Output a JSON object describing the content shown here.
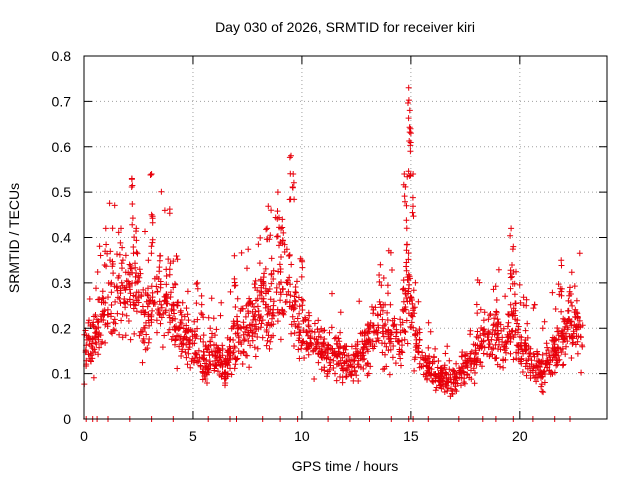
{
  "chart_data": {
    "type": "scatter",
    "title": "Day 030 of 2026, SRMTID for receiver kiri",
    "xlabel": "GPS time / hours",
    "ylabel": "SRMTID / TECUs",
    "xlim": [
      0,
      24
    ],
    "ylim": [
      0,
      0.8
    ],
    "x_ticks": [
      0,
      5,
      10,
      15,
      20
    ],
    "x_tick_labels": [
      "0",
      "5",
      "10",
      "15",
      "20"
    ],
    "y_ticks": [
      0,
      0.1,
      0.2,
      0.3,
      0.4,
      0.5,
      0.6,
      0.7,
      0.8
    ],
    "y_tick_labels": [
      "0",
      "0.1",
      "0.2",
      "0.3",
      "0.4",
      "0.5",
      "0.6",
      "0.7",
      "0.8"
    ],
    "grid": true,
    "marker": "+",
    "marker_color": "#e8000b",
    "data_end_hour": 22.9,
    "trend": [
      {
        "x": 0.0,
        "y": 0.15
      },
      {
        "x": 0.6,
        "y": 0.19
      },
      {
        "x": 1.0,
        "y": 0.24
      },
      {
        "x": 1.5,
        "y": 0.27
      },
      {
        "x": 2.0,
        "y": 0.28
      },
      {
        "x": 2.4,
        "y": 0.32
      },
      {
        "x": 2.7,
        "y": 0.2
      },
      {
        "x": 3.0,
        "y": 0.23
      },
      {
        "x": 3.4,
        "y": 0.28
      },
      {
        "x": 4.0,
        "y": 0.25
      },
      {
        "x": 4.5,
        "y": 0.2
      },
      {
        "x": 5.0,
        "y": 0.17
      },
      {
        "x": 5.5,
        "y": 0.13
      },
      {
        "x": 6.0,
        "y": 0.14
      },
      {
        "x": 6.5,
        "y": 0.12
      },
      {
        "x": 7.0,
        "y": 0.18
      },
      {
        "x": 7.5,
        "y": 0.2
      },
      {
        "x": 8.0,
        "y": 0.22
      },
      {
        "x": 8.3,
        "y": 0.28
      },
      {
        "x": 8.7,
        "y": 0.24
      },
      {
        "x": 9.2,
        "y": 0.31
      },
      {
        "x": 9.6,
        "y": 0.26
      },
      {
        "x": 10.0,
        "y": 0.2
      },
      {
        "x": 10.5,
        "y": 0.17
      },
      {
        "x": 11.0,
        "y": 0.15
      },
      {
        "x": 11.5,
        "y": 0.14
      },
      {
        "x": 12.0,
        "y": 0.13
      },
      {
        "x": 12.5,
        "y": 0.12
      },
      {
        "x": 13.0,
        "y": 0.16
      },
      {
        "x": 13.5,
        "y": 0.21
      },
      {
        "x": 14.0,
        "y": 0.19
      },
      {
        "x": 14.5,
        "y": 0.17
      },
      {
        "x": 14.9,
        "y": 0.3
      },
      {
        "x": 15.2,
        "y": 0.18
      },
      {
        "x": 15.7,
        "y": 0.12
      },
      {
        "x": 16.2,
        "y": 0.1
      },
      {
        "x": 16.7,
        "y": 0.08
      },
      {
        "x": 17.2,
        "y": 0.09
      },
      {
        "x": 17.7,
        "y": 0.12
      },
      {
        "x": 18.3,
        "y": 0.18
      },
      {
        "x": 18.8,
        "y": 0.19
      },
      {
        "x": 19.3,
        "y": 0.16
      },
      {
        "x": 19.7,
        "y": 0.22
      },
      {
        "x": 20.1,
        "y": 0.14
      },
      {
        "x": 20.6,
        "y": 0.13
      },
      {
        "x": 21.1,
        "y": 0.11
      },
      {
        "x": 21.6,
        "y": 0.15
      },
      {
        "x": 22.1,
        "y": 0.19
      },
      {
        "x": 22.6,
        "y": 0.2
      },
      {
        "x": 22.9,
        "y": 0.18
      }
    ],
    "peaks": [
      {
        "x": 1.0,
        "y": 0.42
      },
      {
        "x": 1.7,
        "y": 0.42
      },
      {
        "x": 2.2,
        "y": 0.53
      },
      {
        "x": 2.4,
        "y": 0.42
      },
      {
        "x": 3.1,
        "y": 0.54
      },
      {
        "x": 3.1,
        "y": 0.45
      },
      {
        "x": 3.5,
        "y": 0.36
      },
      {
        "x": 5.2,
        "y": 0.3
      },
      {
        "x": 6.9,
        "y": 0.36
      },
      {
        "x": 8.4,
        "y": 0.42
      },
      {
        "x": 8.9,
        "y": 0.5
      },
      {
        "x": 9.1,
        "y": 0.44
      },
      {
        "x": 9.5,
        "y": 0.58
      },
      {
        "x": 9.6,
        "y": 0.54
      },
      {
        "x": 10.0,
        "y": 0.35
      },
      {
        "x": 13.6,
        "y": 0.34
      },
      {
        "x": 14.7,
        "y": 0.54
      },
      {
        "x": 14.8,
        "y": 0.47
      },
      {
        "x": 14.9,
        "y": 0.73
      },
      {
        "x": 14.95,
        "y": 0.68
      },
      {
        "x": 15.0,
        "y": 0.63
      },
      {
        "x": 15.1,
        "y": 0.54
      },
      {
        "x": 19.6,
        "y": 0.42
      },
      {
        "x": 19.7,
        "y": 0.38
      },
      {
        "x": 21.9,
        "y": 0.35
      },
      {
        "x": 22.3,
        "y": 0.29
      }
    ],
    "zero_points": [
      0.1,
      0.4,
      0.6,
      1.1,
      2.1,
      3.1,
      4.1,
      5.7,
      6.7,
      7.0,
      8.2,
      9.0,
      9.8,
      11.2,
      12.2,
      13.1,
      14.1,
      14.9,
      15.1,
      15.8,
      17.2,
      18.3,
      18.9,
      19.7,
      20.6,
      21.6,
      22.3
    ]
  }
}
